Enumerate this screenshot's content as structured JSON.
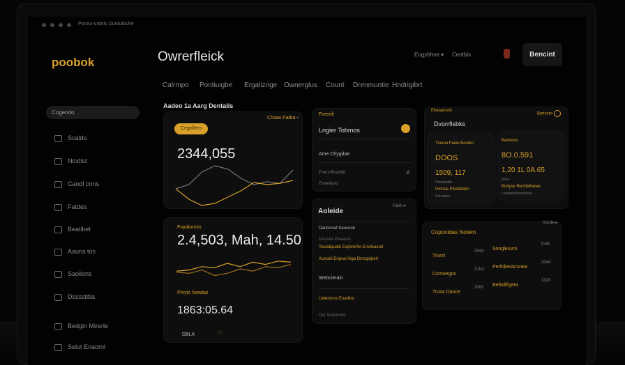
{
  "window": {
    "title_bar": "Pooou-urdnis Dunbabuhe"
  },
  "sidebar": {
    "logo": "poobok",
    "search_value": "Cogendo",
    "items": [
      {
        "label": "Scaldo",
        "icon": "inbox-icon"
      },
      {
        "label": "Noxtist",
        "icon": "stack-icon"
      },
      {
        "label": "Caodl cnns",
        "icon": "folder-icon"
      },
      {
        "label": "Fatdes",
        "icon": "grid-icon"
      },
      {
        "label": "Beatibet",
        "icon": "pin-icon"
      },
      {
        "label": "Aauns tos",
        "icon": "globe-icon"
      },
      {
        "label": "Saolions",
        "icon": "device-icon"
      },
      {
        "label": "Dsssstiba",
        "icon": "hourglass-icon"
      },
      {
        "label": "Bedgin Mirerle",
        "icon": "lightbulb-icon"
      },
      {
        "label": "Selut Enaornl",
        "icon": "settings-icon"
      }
    ]
  },
  "header": {
    "title": "Owrerfleick",
    "menu": "Eogybhne",
    "link": "Centbis",
    "button": "Bencint",
    "icon": "user-icon"
  },
  "tabs": [
    "Calrmpo",
    "Pontiuigbe",
    "Ergalizrige",
    "Ownerglus",
    "Count",
    "Drenmuntie",
    "Hndrigibrt"
  ],
  "section_title": "Aadeo 1a Aarg Dentalis",
  "card1": {
    "badge": "Cegnllero",
    "top_right": "Chaas Fadra",
    "value": "2344,055"
  },
  "card2": {
    "label": "Foyabomio",
    "value": "2.4,503, Mah, 14.50",
    "label2": "Pinyio Nowtas",
    "value2": "1863:05.64",
    "footer": "DBLA"
  },
  "card3": {
    "eyebrow": "Forenfi",
    "title": "Lngier Tobmos",
    "row1": "Ame Chygdae",
    "row2": "Fremufifsantid",
    "row3": "Fonteliqvo"
  },
  "card4": {
    "title": "Aoleide",
    "dropdown": "Farm",
    "rows": [
      "Danlismaf Sausenti",
      "Mousbe Eeeerna",
      "Yaslaliquato Esptverfro Envlisauntl",
      "Auvuidi Enpvai Aiga Dmsgoiperl"
    ],
    "subtitle": "Webcierain",
    "row5": "Uelenrnos Enadlou",
    "row6": "Out Svestohre"
  },
  "card5": {
    "eyebrow": "Eheaamclo",
    "title": "Dvorrfisbks",
    "action": "Bynsoro",
    "sub": [
      {
        "label": "Tioouo Fawe Bandul",
        "v1": "DOOS",
        "v2": "1509, 117",
        "v3": "Dreadvalfo",
        "v4": "Potnoe Pledabiten",
        "v5": "Dimvareo"
      },
      {
        "label": "Bannevo",
        "v1": "8O.0.591",
        "v2": "1,20 1L 0A.65",
        "v3": "Rore",
        "v4": "Bnriyse Rentfellsewe",
        "v5": "Leatobrivlomerdeoe"
      }
    ]
  },
  "card6": {
    "title": "Coponidas Notem",
    "menu": "Vocde",
    "rows": [
      {
        "a": "Tronrl",
        "b": "2044",
        "c": "Snogleuvro",
        "d": "CH3"
      },
      {
        "a": "Comoegos",
        "b": "3.0s1",
        "c": "Perfolievisrsnea",
        "d": "2044"
      },
      {
        "a": "Trusa Dance",
        "b": "2000",
        "c": "Belbdifigeta",
        "d": "1320"
      }
    ]
  },
  "colors": {
    "accent": "#d9a12a",
    "background": "#020202",
    "card": "#0e0e0e"
  },
  "chart1": {
    "type": "line",
    "series": [
      [
        0.45,
        0.55,
        0.85,
        1.0,
        0.92,
        0.7,
        0.55,
        0.62,
        0.58,
        0.9
      ],
      [
        0.45,
        0.2,
        0.05,
        0.1,
        0.25,
        0.4,
        0.6,
        0.55,
        0.58,
        0.65
      ]
    ]
  },
  "chart2": {
    "type": "line",
    "series": [
      [
        0.4,
        0.45,
        0.6,
        0.55,
        0.75,
        0.6,
        0.8,
        0.7,
        0.85,
        0.8
      ],
      [
        0.35,
        0.3,
        0.45,
        0.2,
        0.3,
        0.5,
        0.4,
        0.6,
        0.55,
        0.7
      ]
    ]
  }
}
